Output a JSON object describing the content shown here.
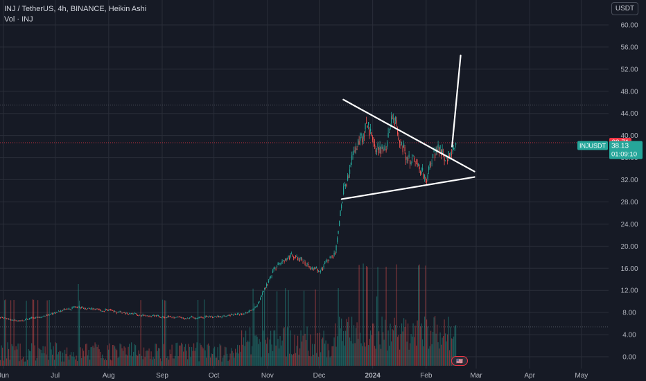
{
  "header": {
    "symbol_line": "INJ / TetherUS, 4h, BINANCE, Heikin Ashi",
    "volume_line": "Vol · INJ"
  },
  "currency_button": "USDT",
  "price_axis": {
    "labels": [
      "60.00",
      "56.00",
      "52.00",
      "48.00",
      "44.00",
      "40.00",
      "36.00",
      "32.00",
      "28.00",
      "24.00",
      "20.00",
      "16.00",
      "12.00",
      "8.00",
      "4.00",
      "0.00"
    ]
  },
  "time_axis": {
    "labels": [
      "Jun",
      "Jul",
      "Aug",
      "Sep",
      "Oct",
      "Nov",
      "Dec",
      "2024",
      "Feb",
      "Mar",
      "Apr",
      "May"
    ]
  },
  "price_tags": {
    "high_label": "38.71",
    "symbol_label": "INJUSDT",
    "price_label": "38.13",
    "countdown_label": "01:09:10"
  },
  "colors": {
    "background": "#161a25",
    "grid": "#2a2e39",
    "up": "#26a69a",
    "down": "#ef5350",
    "line_drawing": "#ffffff",
    "current_price_tag": "#26a69a",
    "high_price_tag": "#f23645"
  },
  "chart_data": {
    "type": "candlestick",
    "title": "INJ / TetherUS, 4h, BINANCE, Heikin Ashi",
    "ylim": [
      -1.5,
      62.5
    ],
    "close_series": {
      "x": [
        "2023-05-25",
        "2023-06-10",
        "2023-06-25",
        "2023-07-05",
        "2023-07-15",
        "2023-08-01",
        "2023-08-15",
        "2023-09-01",
        "2023-09-15",
        "2023-10-01",
        "2023-10-10",
        "2023-10-20",
        "2023-10-25",
        "2023-10-28",
        "2023-11-05",
        "2023-11-15",
        "2023-11-25",
        "2023-12-01",
        "2023-12-05",
        "2023-12-10",
        "2023-12-15",
        "2023-12-20",
        "2023-12-28",
        "2024-01-03",
        "2024-01-08",
        "2024-01-12",
        "2024-01-15",
        "2024-01-20",
        "2024-01-25",
        "2024-02-01",
        "2024-02-07",
        "2024-02-12",
        "2024-02-17"
      ],
      "values": [
        7.5,
        6.5,
        7.5,
        8.5,
        9.0,
        8.3,
        7.7,
        7.2,
        7.0,
        7.3,
        7.5,
        8.0,
        9.0,
        11.0,
        16.0,
        18.5,
        16.5,
        15.5,
        17.0,
        19.0,
        30.0,
        36.0,
        42.0,
        37.5,
        36.5,
        44.0,
        41.0,
        37.0,
        35.5,
        32.5,
        38.5,
        35.0,
        38.13
      ]
    },
    "current_price": 38.13,
    "marked_high": 38.71,
    "volume": "bars, shown on the same panel near the bottom",
    "annotations": {
      "descending_trendline": {
        "from": [
          "2023-12-15",
          46.5
        ],
        "to": [
          "2024-02-29",
          33.5
        ]
      },
      "ascending_trendline": {
        "from": [
          "2023-12-14",
          28.5
        ],
        "to": [
          "2024-02-29",
          32.5
        ]
      },
      "breakout_arrow": {
        "from": [
          "2024-02-16",
          38.0
        ],
        "to": [
          "2024-02-21",
          54.5
        ]
      }
    }
  }
}
